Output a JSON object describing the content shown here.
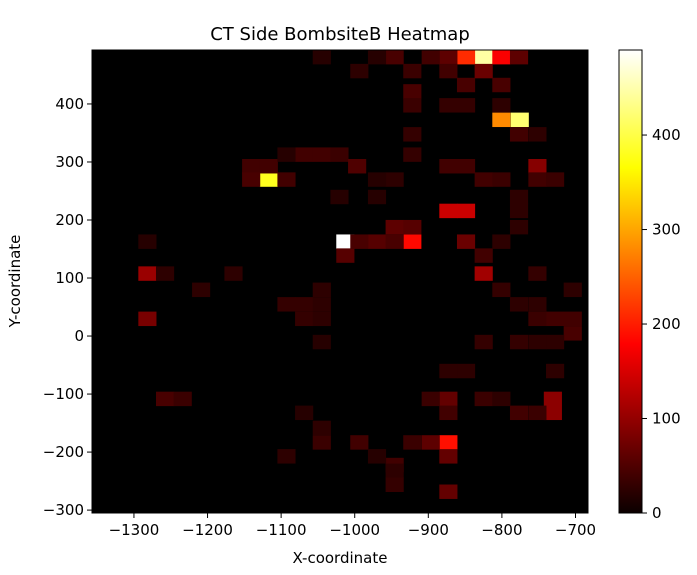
{
  "chart_data": {
    "type": "heatmap",
    "title": "CT Side BombsiteB Heatmap",
    "xlabel": "X-coordinate",
    "ylabel": "Y-coordinate",
    "xlim": [
      -1357,
      -683
    ],
    "ylim": [
      -305,
      493
    ],
    "xticks": [
      -1300,
      -1200,
      -1100,
      -1000,
      -900,
      -800,
      -700
    ],
    "xtick_labels": [
      "−1300",
      "−1200",
      "−1100",
      "−1000",
      "−900",
      "−800",
      "−700"
    ],
    "yticks": [
      -300,
      -200,
      -100,
      0,
      100,
      200,
      300,
      400
    ],
    "ytick_labels": [
      "−300",
      "−200",
      "−100",
      "0",
      "100",
      "200",
      "300",
      "400"
    ],
    "colormap": "hot",
    "background_color": "#000000",
    "colorbar": {
      "min": 0,
      "max": 490,
      "ticks": [
        0,
        100,
        200,
        300,
        400
      ],
      "tick_labels": [
        "0",
        "100",
        "200",
        "300",
        "400"
      ]
    },
    "bin_size_x": 24.1,
    "bin_size_y": 24.2,
    "cells": [
      {
        "x": -1013,
        "y": 163,
        "value": 490
      },
      {
        "x": -825,
        "y": 481,
        "value": 445
      },
      {
        "x": -776,
        "y": 373,
        "value": 420
      },
      {
        "x": -1117,
        "y": 270,
        "value": 380
      },
      {
        "x": -849,
        "y": 481,
        "value": 210
      },
      {
        "x": -801,
        "y": 481,
        "value": 175
      },
      {
        "x": -922,
        "y": 163,
        "value": 185
      },
      {
        "x": -873,
        "y": -183,
        "value": 190
      },
      {
        "x": -873,
        "y": 216,
        "value": 140
      },
      {
        "x": -849,
        "y": 216,
        "value": 140
      },
      {
        "x": -801,
        "y": 373,
        "value": 280
      },
      {
        "x": -873,
        "y": 481,
        "value": 60
      },
      {
        "x": -777,
        "y": 481,
        "value": 60
      },
      {
        "x": -825,
        "y": 457,
        "value": 70
      },
      {
        "x": -1282,
        "y": 108,
        "value": 105
      },
      {
        "x": -1282,
        "y": 30,
        "value": 80
      },
      {
        "x": -825,
        "y": 108,
        "value": 110
      },
      {
        "x": -849,
        "y": 163,
        "value": 70
      },
      {
        "x": -946,
        "y": 188,
        "value": 60
      },
      {
        "x": -922,
        "y": 188,
        "value": 55
      },
      {
        "x": -731,
        "y": -108,
        "value": 95
      },
      {
        "x": -731,
        "y": -132,
        "value": 95
      },
      {
        "x": -752,
        "y": 293,
        "value": 90
      },
      {
        "x": -873,
        "y": -108,
        "value": 65
      },
      {
        "x": -873,
        "y": -207,
        "value": 65
      },
      {
        "x": -873,
        "y": -268,
        "value": 65
      },
      {
        "x": -897,
        "y": -183,
        "value": 60
      },
      {
        "x": -873,
        "y": -132,
        "value": 40
      },
      {
        "x": -897,
        "y": -108,
        "value": 35
      },
      {
        "x": -1013,
        "y": 139,
        "value": 55
      },
      {
        "x": -1258,
        "y": -108,
        "value": 45
      },
      {
        "x": -1234,
        "y": -108,
        "value": 35
      },
      {
        "x": -922,
        "y": 422,
        "value": 45
      },
      {
        "x": -922,
        "y": 398,
        "value": 35
      },
      {
        "x": -946,
        "y": 481,
        "value": 45
      },
      {
        "x": -897,
        "y": 481,
        "value": 40
      },
      {
        "x": -922,
        "y": 457,
        "value": 35
      },
      {
        "x": -873,
        "y": 457,
        "value": 40
      },
      {
        "x": -849,
        "y": 433,
        "value": 45
      },
      {
        "x": -801,
        "y": 433,
        "value": 45
      },
      {
        "x": -777,
        "y": 348,
        "value": 40
      },
      {
        "x": -1069,
        "y": 313,
        "value": 40
      },
      {
        "x": -1045,
        "y": 313,
        "value": 40
      },
      {
        "x": -1021,
        "y": 313,
        "value": 35
      },
      {
        "x": -1141,
        "y": 293,
        "value": 40
      },
      {
        "x": -1117,
        "y": 293,
        "value": 40
      },
      {
        "x": -1141,
        "y": 270,
        "value": 45
      },
      {
        "x": -1093,
        "y": 270,
        "value": 40
      },
      {
        "x": -997,
        "y": 293,
        "value": 50
      },
      {
        "x": -873,
        "y": 293,
        "value": 40
      },
      {
        "x": -849,
        "y": 293,
        "value": 40
      },
      {
        "x": -825,
        "y": 270,
        "value": 40
      },
      {
        "x": -801,
        "y": 270,
        "value": 35
      },
      {
        "x": -752,
        "y": 270,
        "value": 40
      },
      {
        "x": -728,
        "y": 270,
        "value": 35
      },
      {
        "x": -970,
        "y": 163,
        "value": 55
      },
      {
        "x": -994,
        "y": 163,
        "value": 45
      },
      {
        "x": -946,
        "y": 163,
        "value": 45
      },
      {
        "x": -825,
        "y": 139,
        "value": 40
      },
      {
        "x": -946,
        "y": -222,
        "value": 40
      },
      {
        "x": -994,
        "y": -183,
        "value": 40
      },
      {
        "x": -1045,
        "y": -183,
        "value": 35
      },
      {
        "x": -922,
        "y": -183,
        "value": 35
      },
      {
        "x": -825,
        "y": -108,
        "value": 35
      },
      {
        "x": -777,
        "y": -132,
        "value": 40
      },
      {
        "x": -752,
        "y": -132,
        "value": 35
      },
      {
        "x": -704,
        "y": 5,
        "value": 45
      },
      {
        "x": -704,
        "y": 30,
        "value": 40
      },
      {
        "x": -728,
        "y": 30,
        "value": 40
      },
      {
        "x": -752,
        "y": 30,
        "value": 35
      },
      {
        "x": -1093,
        "y": 55,
        "value": 30
      },
      {
        "x": -1069,
        "y": 55,
        "value": 30
      },
      {
        "x": -1069,
        "y": 30,
        "value": 30
      },
      {
        "x": -825,
        "y": -10,
        "value": 30
      },
      {
        "x": -777,
        "y": -10,
        "value": 30
      },
      {
        "x": -801,
        "y": 80,
        "value": 30
      },
      {
        "x": -752,
        "y": 108,
        "value": 30
      },
      {
        "x": -1258,
        "y": 108,
        "value": 25
      },
      {
        "x": -1209,
        "y": 80,
        "value": 25
      },
      {
        "x": -1165,
        "y": 108,
        "value": 25
      },
      {
        "x": -1045,
        "y": 80,
        "value": 25
      },
      {
        "x": -1045,
        "y": 55,
        "value": 25
      },
      {
        "x": -1045,
        "y": 30,
        "value": 25
      },
      {
        "x": -1045,
        "y": -10,
        "value": 20
      },
      {
        "x": -1069,
        "y": -132,
        "value": 20
      },
      {
        "x": -1045,
        "y": -158,
        "value": 25
      },
      {
        "x": -1093,
        "y": -207,
        "value": 25
      },
      {
        "x": -970,
        "y": -207,
        "value": 20
      },
      {
        "x": -946,
        "y": -232,
        "value": 25
      },
      {
        "x": -946,
        "y": -256,
        "value": 30
      },
      {
        "x": -849,
        "y": -60,
        "value": 25
      },
      {
        "x": -873,
        "y": -60,
        "value": 25
      },
      {
        "x": -801,
        "y": -108,
        "value": 25
      },
      {
        "x": -728,
        "y": -60,
        "value": 25
      },
      {
        "x": -728,
        "y": -10,
        "value": 25
      },
      {
        "x": -752,
        "y": -10,
        "value": 25
      },
      {
        "x": -752,
        "y": 55,
        "value": 25
      },
      {
        "x": -777,
        "y": 55,
        "value": 25
      },
      {
        "x": -704,
        "y": 80,
        "value": 25
      },
      {
        "x": -777,
        "y": 188,
        "value": 25
      },
      {
        "x": -777,
        "y": 216,
        "value": 25
      },
      {
        "x": -777,
        "y": 240,
        "value": 25
      },
      {
        "x": -801,
        "y": 163,
        "value": 25
      },
      {
        "x": -1282,
        "y": 163,
        "value": 20
      },
      {
        "x": -1021,
        "y": 240,
        "value": 20
      },
      {
        "x": -970,
        "y": 240,
        "value": 20
      },
      {
        "x": -946,
        "y": 270,
        "value": 25
      },
      {
        "x": -970,
        "y": 270,
        "value": 20
      },
      {
        "x": -1093,
        "y": 313,
        "value": 20
      },
      {
        "x": -994,
        "y": 457,
        "value": 25
      },
      {
        "x": -970,
        "y": 481,
        "value": 20
      },
      {
        "x": -1045,
        "y": 481,
        "value": 20
      },
      {
        "x": -873,
        "y": 398,
        "value": 30
      },
      {
        "x": -849,
        "y": 398,
        "value": 30
      },
      {
        "x": -801,
        "y": 398,
        "value": 25
      },
      {
        "x": -752,
        "y": 348,
        "value": 25
      },
      {
        "x": -922,
        "y": 348,
        "value": 30
      },
      {
        "x": -922,
        "y": 313,
        "value": 30
      }
    ]
  }
}
